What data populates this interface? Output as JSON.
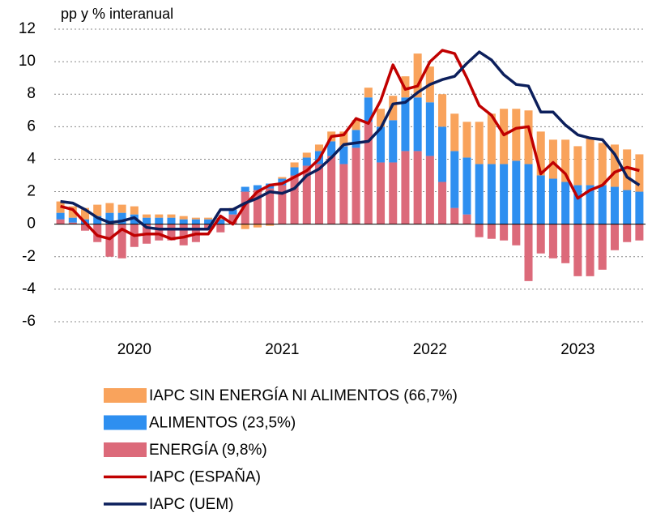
{
  "chart_data": {
    "type": "bar",
    "stacked": true,
    "y_axis_label": "pp y % interanual",
    "categories": [
      null,
      null,
      null,
      null,
      null,
      null,
      null,
      null,
      null,
      null,
      null,
      null,
      null,
      null,
      null,
      null,
      null,
      null,
      null,
      null,
      null,
      null,
      null,
      null,
      null,
      null,
      null,
      null,
      null,
      null,
      null,
      null,
      null,
      null,
      null,
      null,
      null,
      null,
      null,
      null,
      null,
      null,
      null,
      null,
      null,
      null,
      null,
      null
    ],
    "xticks": [
      {
        "value": 6.5,
        "label": "2020"
      },
      {
        "value": 18.5,
        "label": "2021"
      },
      {
        "value": 30.5,
        "label": "2022"
      },
      {
        "value": 42.5,
        "label": "2023"
      }
    ],
    "ylim": [
      -6,
      12
    ],
    "yticks": [
      -6,
      -4,
      -2,
      0,
      2,
      4,
      6,
      8,
      10,
      12
    ],
    "grid": true,
    "series": [
      {
        "name": "IAPC SIN ENERGÍA NI ALIMENTOS (66,7%)",
        "type": "bar",
        "color": "#f9a35c",
        "values": [
          0.7,
          0.7,
          0.7,
          0.7,
          0.6,
          0.5,
          0.5,
          0.2,
          0.2,
          0.2,
          0.2,
          0.1,
          0.1,
          0.1,
          0.1,
          -0.3,
          -0.2,
          -0.1,
          0.1,
          0.3,
          0.3,
          0.4,
          0.6,
          0.9,
          0.6,
          0.6,
          1.1,
          1.5,
          1.3,
          2.7,
          2.2,
          2.0,
          2.3,
          2.2,
          2.6,
          3.1,
          3.4,
          3.2,
          3.3,
          2.7,
          2.4,
          2.6,
          2.4,
          2.9,
          2.6,
          2.6,
          2.5,
          2.3
        ]
      },
      {
        "name": "ALIMENTOS (23,5%)",
        "type": "bar",
        "color": "#2e8ff0",
        "values": [
          0.4,
          0.3,
          0.3,
          0.5,
          0.7,
          0.7,
          0.6,
          0.4,
          0.4,
          0.4,
          0.3,
          0.3,
          0.3,
          0.3,
          0.3,
          0.3,
          0.3,
          0.3,
          0.4,
          0.5,
          0.5,
          0.8,
          0.9,
          1.1,
          1.1,
          1.5,
          2.2,
          2.6,
          3.3,
          3.3,
          3.3,
          3.4,
          3.5,
          3.5,
          3.7,
          3.7,
          3.7,
          3.9,
          3.7,
          3.0,
          2.8,
          2.6,
          2.4,
          2.4,
          2.4,
          2.3,
          2.1,
          2.0
        ]
      },
      {
        "name": "ENERGÍA (9,8%)",
        "type": "bar",
        "color": "#dc6a7a",
        "values": [
          0.3,
          0.1,
          -0.4,
          -1.1,
          -2.0,
          -2.1,
          -1.4,
          -1.2,
          -1.0,
          -1.0,
          -1.3,
          -1.1,
          -0.3,
          -0.5,
          0.6,
          2.0,
          2.1,
          2.2,
          2.4,
          3.0,
          3.6,
          3.7,
          4.2,
          3.7,
          4.7,
          6.3,
          3.8,
          3.8,
          4.5,
          4.5,
          4.2,
          2.6,
          1.0,
          0.6,
          -0.8,
          -0.9,
          -1.0,
          -1.3,
          -3.5,
          -1.8,
          -2.1,
          -2.4,
          -3.2,
          -3.2,
          -2.8,
          -1.6,
          -1.1,
          -1.0
        ]
      },
      {
        "name": "IAPC (ESPAÑA)",
        "type": "line",
        "color": "#c00000",
        "values": [
          1.1,
          0.9,
          0.1,
          -0.7,
          -0.9,
          -0.3,
          -0.7,
          -0.6,
          -0.6,
          -0.9,
          -0.8,
          -0.6,
          -0.6,
          0.5,
          0.0,
          1.2,
          2.0,
          2.4,
          2.5,
          2.9,
          3.3,
          4.0,
          5.4,
          5.5,
          6.5,
          6.2,
          7.6,
          9.8,
          8.3,
          8.5,
          10.0,
          10.7,
          10.5,
          9.0,
          7.3,
          6.7,
          5.5,
          5.9,
          6.0,
          3.1,
          3.8,
          3.1,
          1.6,
          2.1,
          2.4,
          3.2,
          3.5,
          3.3
        ]
      },
      {
        "name": "IAPC (UEM)",
        "type": "line",
        "color": "#0c1f5c",
        "values": [
          1.4,
          1.3,
          0.9,
          0.4,
          0.1,
          0.2,
          0.4,
          -0.2,
          -0.3,
          -0.3,
          -0.3,
          -0.3,
          -0.3,
          0.9,
          0.9,
          1.3,
          1.6,
          2.0,
          1.9,
          2.2,
          3.0,
          3.4,
          4.1,
          4.9,
          5.0,
          5.1,
          5.9,
          7.4,
          7.5,
          8.1,
          8.6,
          8.9,
          9.1,
          9.9,
          10.6,
          10.1,
          9.2,
          8.6,
          8.5,
          6.9,
          6.9,
          6.1,
          5.5,
          5.3,
          5.2,
          4.3,
          2.9,
          2.4
        ]
      }
    ]
  }
}
